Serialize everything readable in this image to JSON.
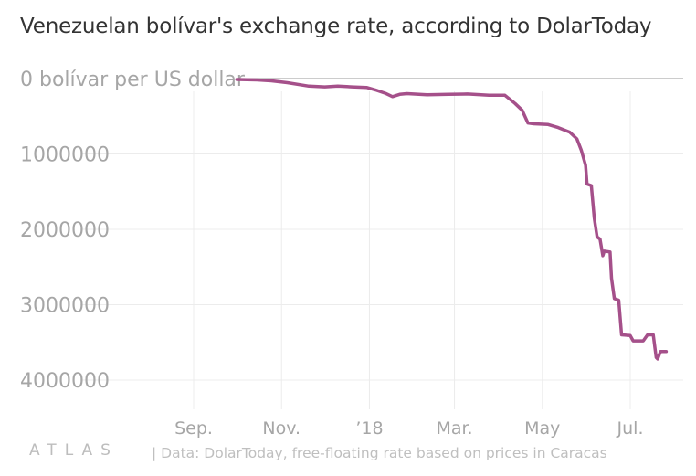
{
  "title": "Venezuelan bolívar's exchange rate, according to DolarToday",
  "source": "| Data: DolarToday, free-floating rate based on prices in Caracas",
  "logo": "ATLAS",
  "chart_data": {
    "type": "line",
    "title": "Venezuelan bolívar's exchange rate, according to DolarToday",
    "ylabel": "bolívar per US dollar",
    "yinverted": true,
    "ylim": [
      0,
      4000000
    ],
    "y_ticks": [
      {
        "value": 0,
        "label": "0 bolívar per US dollar"
      },
      {
        "value": 1000000,
        "label": "1000000"
      },
      {
        "value": 2000000,
        "label": "2000000"
      },
      {
        "value": 3000000,
        "label": "3000000"
      },
      {
        "value": 4000000,
        "label": "4000000"
      }
    ],
    "x_ticks": [
      {
        "value": "2017-09-01",
        "label": "Sep."
      },
      {
        "value": "2017-11-01",
        "label": "Nov."
      },
      {
        "value": "2018-01-01",
        "label": "’18"
      },
      {
        "value": "2018-03-01",
        "label": "Mar."
      },
      {
        "value": "2018-05-01",
        "label": "May"
      },
      {
        "value": "2018-07-01",
        "label": "Jul."
      }
    ],
    "xlim": [
      "2017-08-01",
      "2018-08-05"
    ],
    "grid": true,
    "line_color": "#a5508a",
    "series": [
      {
        "points": [
          [
            "2017-10-01",
            12000
          ],
          [
            "2017-10-15",
            18000
          ],
          [
            "2017-10-25",
            30000
          ],
          [
            "2017-11-05",
            55000
          ],
          [
            "2017-11-20",
            100000
          ],
          [
            "2017-12-01",
            110000
          ],
          [
            "2017-12-10",
            100000
          ],
          [
            "2017-12-20",
            110000
          ],
          [
            "2017-12-30",
            118000
          ],
          [
            "2018-01-05",
            150000
          ],
          [
            "2018-01-12",
            195000
          ],
          [
            "2018-01-17",
            240000
          ],
          [
            "2018-01-22",
            210000
          ],
          [
            "2018-01-27",
            200000
          ],
          [
            "2018-02-10",
            215000
          ],
          [
            "2018-02-25",
            210000
          ],
          [
            "2018-03-10",
            205000
          ],
          [
            "2018-03-25",
            222000
          ],
          [
            "2018-04-05",
            222000
          ],
          [
            "2018-04-12",
            330000
          ],
          [
            "2018-04-17",
            420000
          ],
          [
            "2018-04-21",
            590000
          ],
          [
            "2018-04-25",
            600000
          ],
          [
            "2018-05-05",
            610000
          ],
          [
            "2018-05-12",
            650000
          ],
          [
            "2018-05-20",
            710000
          ],
          [
            "2018-05-25",
            800000
          ],
          [
            "2018-05-28",
            950000
          ],
          [
            "2018-05-31",
            1150000
          ],
          [
            "2018-06-01",
            1400000
          ],
          [
            "2018-06-04",
            1420000
          ],
          [
            "2018-06-06",
            1850000
          ],
          [
            "2018-06-08",
            2100000
          ],
          [
            "2018-06-10",
            2130000
          ],
          [
            "2018-06-12",
            2350000
          ],
          [
            "2018-06-13",
            2290000
          ],
          [
            "2018-06-17",
            2300000
          ],
          [
            "2018-06-18",
            2650000
          ],
          [
            "2018-06-20",
            2920000
          ],
          [
            "2018-06-23",
            2940000
          ],
          [
            "2018-06-25",
            3400000
          ],
          [
            "2018-07-01",
            3410000
          ],
          [
            "2018-07-03",
            3480000
          ],
          [
            "2018-07-10",
            3480000
          ],
          [
            "2018-07-13",
            3400000
          ],
          [
            "2018-07-17",
            3400000
          ],
          [
            "2018-07-19",
            3700000
          ],
          [
            "2018-07-20",
            3720000
          ],
          [
            "2018-07-22",
            3620000
          ],
          [
            "2018-07-26",
            3620000
          ]
        ]
      }
    ]
  }
}
